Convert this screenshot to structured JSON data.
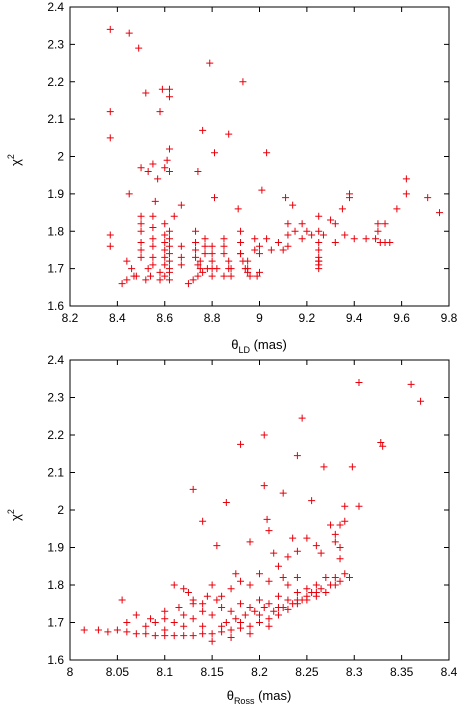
{
  "colors": {
    "marker": "#e8000b",
    "axis": "#000000",
    "background": "#ffffff"
  },
  "chart_data": [
    {
      "type": "scatter",
      "marker": "plus",
      "xlabel_main": "θ",
      "xlabel_sub": "LD",
      "xlabel_unit": " (mas)",
      "ylabel_main": "χ",
      "ylabel_sup": "2",
      "xlim": [
        8.2,
        9.8
      ],
      "ylim": [
        1.6,
        2.4
      ],
      "xticks": [
        "8.2",
        "8.4",
        "8.6",
        "8.8",
        "9",
        "9.2",
        "9.4",
        "9.6",
        "9.8"
      ],
      "yticks": [
        "1.6",
        "1.7",
        "1.8",
        "1.9",
        "2",
        "2.1",
        "2.2",
        "2.3",
        "2.4"
      ],
      "xtick_values": [
        8.2,
        8.4,
        8.6,
        8.8,
        9.0,
        9.2,
        9.4,
        9.6,
        9.8
      ],
      "ytick_values": [
        1.6,
        1.7,
        1.8,
        1.9,
        2.0,
        2.1,
        2.2,
        2.3,
        2.4
      ],
      "grid": false,
      "points": [
        [
          8.37,
          2.34
        ],
        [
          8.45,
          2.33
        ],
        [
          8.49,
          2.29
        ],
        [
          8.79,
          2.25
        ],
        [
          8.93,
          2.2
        ],
        [
          8.52,
          2.17
        ],
        [
          8.59,
          2.18
        ],
        [
          8.62,
          2.18
        ],
        [
          8.62,
          2.16
        ],
        [
          8.58,
          2.12
        ],
        [
          8.37,
          2.12
        ],
        [
          8.37,
          2.05
        ],
        [
          8.76,
          2.07
        ],
        [
          8.87,
          2.06
        ],
        [
          8.62,
          2.02
        ],
        [
          9.03,
          2.01
        ],
        [
          8.55,
          1.98
        ],
        [
          8.61,
          1.99
        ],
        [
          8.81,
          2.01
        ],
        [
          8.5,
          1.97
        ],
        [
          8.53,
          1.96
        ],
        [
          8.6,
          1.97
        ],
        [
          8.62,
          1.96
        ],
        [
          8.57,
          1.94
        ],
        [
          8.74,
          1.96
        ],
        [
          8.45,
          1.9
        ],
        [
          8.56,
          1.88
        ],
        [
          8.67,
          1.87
        ],
        [
          8.64,
          1.84
        ],
        [
          8.81,
          1.89
        ],
        [
          8.91,
          1.86
        ],
        [
          9.01,
          1.91
        ],
        [
          9.14,
          1.87
        ],
        [
          9.11,
          1.89
        ],
        [
          9.25,
          1.84
        ],
        [
          9.38,
          1.9
        ],
        [
          9.38,
          1.89
        ],
        [
          9.62,
          1.94
        ],
        [
          9.62,
          1.9
        ],
        [
          9.58,
          1.86
        ],
        [
          9.71,
          1.89
        ],
        [
          9.76,
          1.85
        ],
        [
          9.5,
          1.82
        ],
        [
          9.53,
          1.82
        ],
        [
          9.35,
          1.86
        ],
        [
          9.32,
          1.82
        ],
        [
          9.3,
          1.83
        ],
        [
          9.27,
          1.79
        ],
        [
          9.32,
          1.77
        ],
        [
          9.4,
          1.78
        ],
        [
          9.45,
          1.78
        ],
        [
          9.49,
          1.78
        ],
        [
          9.51,
          1.77
        ],
        [
          9.53,
          1.77
        ],
        [
          9.55,
          1.77
        ],
        [
          9.5,
          1.8
        ],
        [
          9.36,
          1.79
        ],
        [
          9.2,
          1.8
        ],
        [
          9.18,
          1.78
        ],
        [
          8.37,
          1.79
        ],
        [
          8.37,
          1.76
        ],
        [
          8.5,
          1.84
        ],
        [
          8.5,
          1.82
        ],
        [
          8.5,
          1.8
        ],
        [
          8.5,
          1.77
        ],
        [
          8.5,
          1.75
        ],
        [
          8.5,
          1.73
        ],
        [
          8.55,
          1.84
        ],
        [
          8.55,
          1.81
        ],
        [
          8.55,
          1.78
        ],
        [
          8.55,
          1.76
        ],
        [
          8.55,
          1.73
        ],
        [
          8.55,
          1.71
        ],
        [
          8.6,
          1.82
        ],
        [
          8.6,
          1.79
        ],
        [
          8.6,
          1.77
        ],
        [
          8.6,
          1.75
        ],
        [
          8.6,
          1.73
        ],
        [
          8.6,
          1.71
        ],
        [
          8.62,
          1.8
        ],
        [
          8.62,
          1.78
        ],
        [
          8.62,
          1.76
        ],
        [
          8.62,
          1.74
        ],
        [
          8.62,
          1.72
        ],
        [
          8.62,
          1.7
        ],
        [
          8.67,
          1.76
        ],
        [
          8.67,
          1.73
        ],
        [
          8.67,
          1.71
        ],
        [
          8.73,
          1.8
        ],
        [
          8.73,
          1.77
        ],
        [
          8.73,
          1.75
        ],
        [
          8.73,
          1.73
        ],
        [
          8.75,
          1.72
        ],
        [
          8.75,
          1.7
        ],
        [
          8.77,
          1.78
        ],
        [
          8.77,
          1.76
        ],
        [
          8.77,
          1.74
        ],
        [
          8.8,
          1.76
        ],
        [
          8.8,
          1.74
        ],
        [
          8.8,
          1.72
        ],
        [
          8.8,
          1.7
        ],
        [
          8.85,
          1.78
        ],
        [
          8.85,
          1.76
        ],
        [
          8.85,
          1.74
        ],
        [
          8.87,
          1.72
        ],
        [
          8.87,
          1.7
        ],
        [
          8.92,
          1.8
        ],
        [
          8.92,
          1.77
        ],
        [
          8.92,
          1.74
        ],
        [
          8.95,
          1.72
        ],
        [
          8.95,
          1.7
        ],
        [
          8.98,
          1.78
        ],
        [
          8.98,
          1.75
        ],
        [
          9.0,
          1.76
        ],
        [
          9.0,
          1.74
        ],
        [
          9.03,
          1.78
        ],
        [
          9.05,
          1.75
        ],
        [
          9.08,
          1.77
        ],
        [
          9.1,
          1.75
        ],
        [
          9.12,
          1.82
        ],
        [
          9.12,
          1.79
        ],
        [
          9.12,
          1.76
        ],
        [
          9.15,
          1.8
        ],
        [
          9.18,
          1.82
        ],
        [
          9.22,
          1.79
        ],
        [
          9.25,
          1.8
        ],
        [
          9.25,
          1.77
        ],
        [
          9.25,
          1.75
        ],
        [
          9.25,
          1.73
        ],
        [
          9.25,
          1.72
        ],
        [
          9.25,
          1.71
        ],
        [
          8.44,
          1.72
        ],
        [
          8.46,
          1.7
        ],
        [
          8.48,
          1.68
        ],
        [
          8.52,
          1.67
        ],
        [
          8.54,
          1.68
        ],
        [
          8.53,
          1.7
        ],
        [
          8.58,
          1.67
        ],
        [
          8.58,
          1.69
        ],
        [
          8.6,
          1.68
        ],
        [
          8.62,
          1.67
        ],
        [
          8.62,
          1.69
        ],
        [
          8.7,
          1.66
        ],
        [
          8.72,
          1.67
        ],
        [
          8.74,
          1.68
        ],
        [
          8.76,
          1.69
        ],
        [
          8.74,
          1.71
        ],
        [
          8.78,
          1.7
        ],
        [
          8.8,
          1.68
        ],
        [
          8.82,
          1.7
        ],
        [
          8.85,
          1.68
        ],
        [
          8.88,
          1.7
        ],
        [
          8.88,
          1.68
        ],
        [
          8.92,
          1.74
        ],
        [
          8.93,
          1.72
        ],
        [
          8.94,
          1.7
        ],
        [
          8.95,
          1.69
        ],
        [
          8.96,
          1.68
        ],
        [
          8.99,
          1.68
        ],
        [
          9.0,
          1.69
        ],
        [
          9.25,
          1.72
        ],
        [
          9.25,
          1.7
        ],
        [
          8.42,
          1.66
        ],
        [
          8.44,
          1.67
        ],
        [
          8.47,
          1.68
        ]
      ]
    },
    {
      "type": "scatter",
      "marker": "plus",
      "xlabel_main": "θ",
      "xlabel_sub": "Ross",
      "xlabel_unit": " (mas)",
      "ylabel_main": "χ",
      "ylabel_sup": "2",
      "xlim": [
        8.0,
        8.4
      ],
      "ylim": [
        1.6,
        2.4
      ],
      "xticks": [
        "8",
        "8.05",
        "8.1",
        "8.15",
        "8.2",
        "8.25",
        "8.3",
        "8.35",
        "8.4"
      ],
      "yticks": [
        "1.6",
        "1.7",
        "1.8",
        "1.9",
        "2",
        "2.1",
        "2.2",
        "2.3",
        "2.4"
      ],
      "xtick_values": [
        8.0,
        8.05,
        8.1,
        8.15,
        8.2,
        8.25,
        8.3,
        8.35,
        8.4
      ],
      "ytick_values": [
        1.6,
        1.7,
        1.8,
        1.9,
        2.0,
        2.1,
        2.2,
        2.3,
        2.4
      ],
      "grid": false,
      "points": [
        [
          8.305,
          2.34
        ],
        [
          8.36,
          2.335
        ],
        [
          8.37,
          2.29
        ],
        [
          8.245,
          2.245
        ],
        [
          8.18,
          2.175
        ],
        [
          8.205,
          2.2
        ],
        [
          8.328,
          2.18
        ],
        [
          8.33,
          2.17
        ],
        [
          8.24,
          2.145
        ],
        [
          8.268,
          2.115
        ],
        [
          8.298,
          2.115
        ],
        [
          8.13,
          2.055
        ],
        [
          8.205,
          2.065
        ],
        [
          8.225,
          2.045
        ],
        [
          8.255,
          2.025
        ],
        [
          8.165,
          2.02
        ],
        [
          8.29,
          2.01
        ],
        [
          8.305,
          2.01
        ],
        [
          8.14,
          1.97
        ],
        [
          8.208,
          1.975
        ],
        [
          8.21,
          1.945
        ],
        [
          8.275,
          1.96
        ],
        [
          8.285,
          1.96
        ],
        [
          8.29,
          1.97
        ],
        [
          8.235,
          1.925
        ],
        [
          8.25,
          1.925
        ],
        [
          8.26,
          1.905
        ],
        [
          8.28,
          1.935
        ],
        [
          8.28,
          1.915
        ],
        [
          8.285,
          1.9
        ],
        [
          8.155,
          1.905
        ],
        [
          8.19,
          1.915
        ],
        [
          8.215,
          1.885
        ],
        [
          8.23,
          1.875
        ],
        [
          8.24,
          1.89
        ],
        [
          8.265,
          1.885
        ],
        [
          8.285,
          1.87
        ],
        [
          8.055,
          1.76
        ],
        [
          8.07,
          1.72
        ],
        [
          8.11,
          1.8
        ],
        [
          8.12,
          1.79
        ],
        [
          8.125,
          1.78
        ],
        [
          8.13,
          1.76
        ],
        [
          8.14,
          1.75
        ],
        [
          8.15,
          1.8
        ],
        [
          8.16,
          1.77
        ],
        [
          8.17,
          1.79
        ],
        [
          8.175,
          1.83
        ],
        [
          8.18,
          1.81
        ],
        [
          8.19,
          1.8
        ],
        [
          8.2,
          1.83
        ],
        [
          8.21,
          1.81
        ],
        [
          8.22,
          1.85
        ],
        [
          8.225,
          1.82
        ],
        [
          8.23,
          1.8
        ],
        [
          8.24,
          1.82
        ],
        [
          8.25,
          1.79
        ],
        [
          8.26,
          1.8
        ],
        [
          8.27,
          1.82
        ],
        [
          8.28,
          1.82
        ],
        [
          8.29,
          1.83
        ],
        [
          8.015,
          1.68
        ],
        [
          8.03,
          1.68
        ],
        [
          8.04,
          1.675
        ],
        [
          8.05,
          1.68
        ],
        [
          8.06,
          1.675
        ],
        [
          8.07,
          1.67
        ],
        [
          8.08,
          1.67
        ],
        [
          8.09,
          1.665
        ],
        [
          8.1,
          1.665
        ],
        [
          8.11,
          1.665
        ],
        [
          8.12,
          1.665
        ],
        [
          8.13,
          1.665
        ],
        [
          8.14,
          1.67
        ],
        [
          8.15,
          1.67
        ],
        [
          8.16,
          1.675
        ],
        [
          8.17,
          1.68
        ],
        [
          8.18,
          1.685
        ],
        [
          8.19,
          1.69
        ],
        [
          8.2,
          1.7
        ],
        [
          8.21,
          1.71
        ],
        [
          8.22,
          1.72
        ],
        [
          8.23,
          1.735
        ],
        [
          8.24,
          1.75
        ],
        [
          8.25,
          1.76
        ],
        [
          8.26,
          1.77
        ],
        [
          8.27,
          1.78
        ],
        [
          8.08,
          1.69
        ],
        [
          8.09,
          1.7
        ],
        [
          8.1,
          1.71
        ],
        [
          8.11,
          1.7
        ],
        [
          8.12,
          1.72
        ],
        [
          8.13,
          1.71
        ],
        [
          8.14,
          1.73
        ],
        [
          8.15,
          1.72
        ],
        [
          8.16,
          1.74
        ],
        [
          8.17,
          1.73
        ],
        [
          8.18,
          1.75
        ],
        [
          8.19,
          1.74
        ],
        [
          8.2,
          1.76
        ],
        [
          8.21,
          1.75
        ],
        [
          8.22,
          1.77
        ],
        [
          8.23,
          1.76
        ],
        [
          8.24,
          1.78
        ],
        [
          8.25,
          1.77
        ],
        [
          8.06,
          1.7
        ],
        [
          8.085,
          1.71
        ],
        [
          8.1,
          1.73
        ],
        [
          8.115,
          1.74
        ],
        [
          8.13,
          1.75
        ],
        [
          8.145,
          1.77
        ],
        [
          8.155,
          1.76
        ],
        [
          8.165,
          1.7
        ],
        [
          8.175,
          1.71
        ],
        [
          8.185,
          1.72
        ],
        [
          8.195,
          1.73
        ],
        [
          8.205,
          1.74
        ],
        [
          8.215,
          1.73
        ],
        [
          8.225,
          1.74
        ],
        [
          8.235,
          1.75
        ],
        [
          8.245,
          1.76
        ],
        [
          8.255,
          1.78
        ],
        [
          8.265,
          1.79
        ],
        [
          8.275,
          1.8
        ],
        [
          8.285,
          1.81
        ],
        [
          8.295,
          1.82
        ],
        [
          8.1,
          1.68
        ],
        [
          8.12,
          1.69
        ],
        [
          8.14,
          1.69
        ],
        [
          8.16,
          1.69
        ],
        [
          8.18,
          1.7
        ],
        [
          8.2,
          1.72
        ],
        [
          8.22,
          1.74
        ],
        [
          8.24,
          1.76
        ],
        [
          8.26,
          1.78
        ],
        [
          8.28,
          1.8
        ],
        [
          8.15,
          1.65
        ],
        [
          8.17,
          1.66
        ],
        [
          8.19,
          1.67
        ],
        [
          8.21,
          1.69
        ]
      ]
    }
  ]
}
